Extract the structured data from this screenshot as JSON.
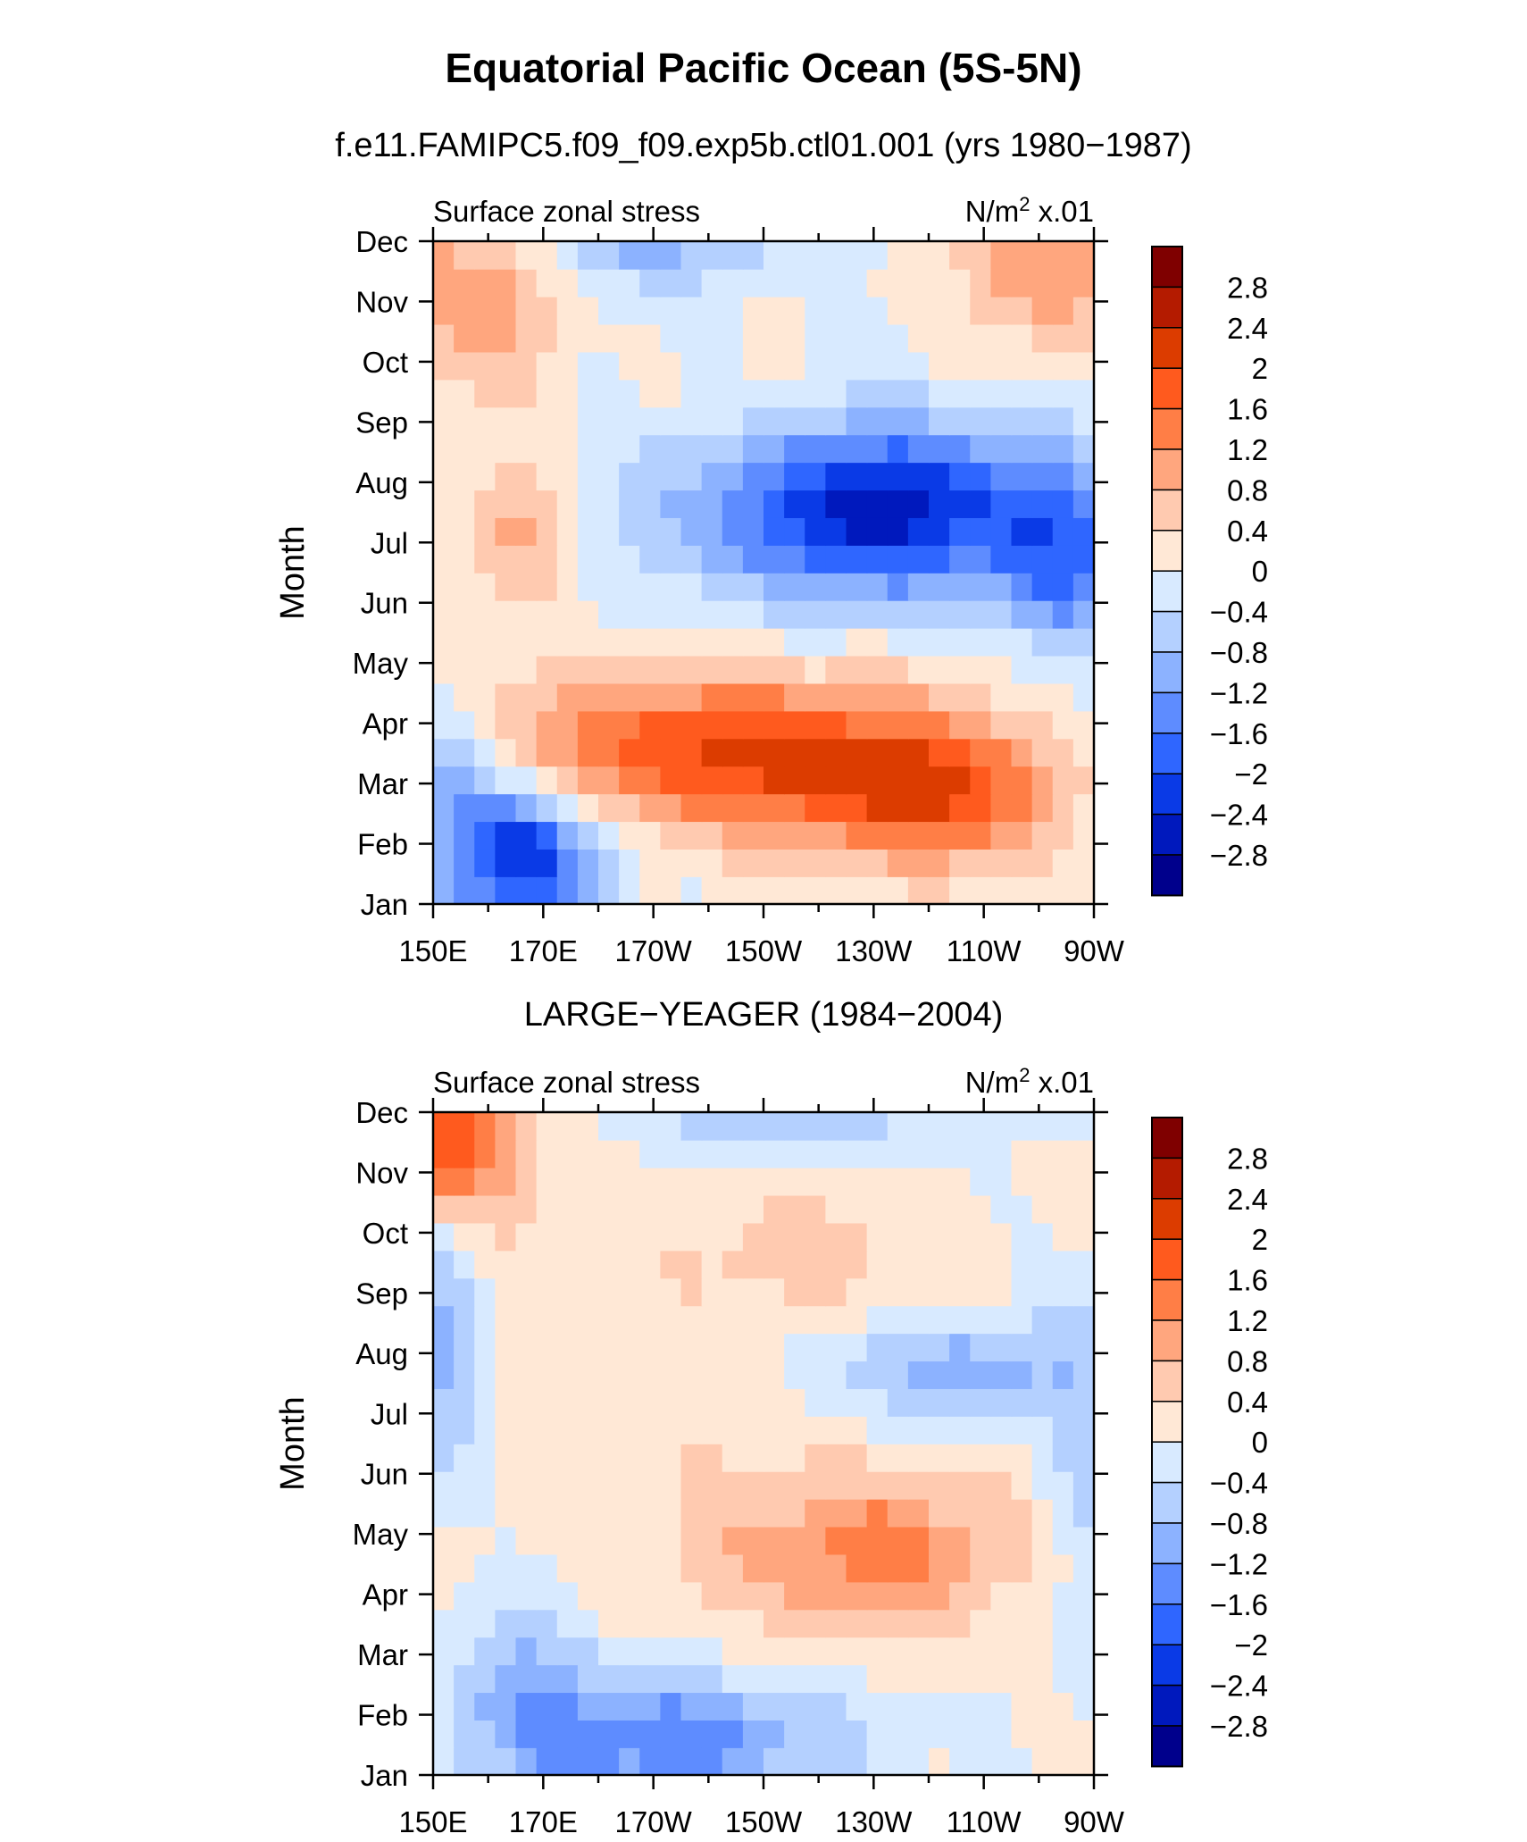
{
  "title": "Equatorial Pacific Ocean (5S-5N)",
  "chart_data": [
    {
      "type": "heatmap",
      "subtitle": "f.e11.FAMIPC5.f09_f09.exp5b.ctl01.001 (yrs 1980−1987)",
      "left_label": "Surface zonal stress",
      "right_label_base": "N/m",
      "right_label_exp": "2",
      "right_label_scale": " x.01",
      "ylabel": "Month",
      "x_ticks": [
        "150E",
        "170E",
        "170W",
        "150W",
        "130W",
        "110W",
        "90W"
      ],
      "y_ticks": [
        "Jan",
        "Feb",
        "Mar",
        "Apr",
        "May",
        "Jun",
        "Jul",
        "Aug",
        "Sep",
        "Oct",
        "Nov",
        "Dec"
      ],
      "levels": [
        "2.8",
        "2.4",
        "2",
        "1.6",
        "1.2",
        "0.8",
        "0.4",
        "0",
        "−0.4",
        "−0.8",
        "−1.2",
        "−1.6",
        "−2",
        "−2.4",
        "−2.8"
      ],
      "colors": [
        "#7f0000",
        "#b41b00",
        "#dc3c00",
        "#ff5a1e",
        "#ff7e46",
        "#ffa67e",
        "#ffcab0",
        "#ffe8d6",
        "#d8eaff",
        "#b4d0ff",
        "#8cb2ff",
        "#5e8cff",
        "#2f66ff",
        "#0a3ae6",
        "#0019bd",
        "#00008c"
      ],
      "blobs": [
        {
          "x": -1.0,
          "y": 11.0,
          "sx": 2.0,
          "sy": 3.0,
          "a": 0.8
        },
        {
          "x": 3.0,
          "y": 10.2,
          "sx": 2.8,
          "sy": 1.6,
          "a": 1.0
        },
        {
          "x": 3.5,
          "y": 6.2,
          "sx": 2.8,
          "sy": 1.3,
          "a": 0.9
        },
        {
          "x": 9.0,
          "y": 2.5,
          "sx": 9.0,
          "sy": 1.4,
          "a": 1.4
        },
        {
          "x": 18.5,
          "y": 2.1,
          "sx": 8.0,
          "sy": 1.4,
          "a": 1.5
        },
        {
          "x": 24.0,
          "y": 1.6,
          "sx": 5.0,
          "sy": 1.3,
          "a": 1.2
        },
        {
          "x": 20.0,
          "y": 6.6,
          "sx": 9.0,
          "sy": 1.5,
          "a": -2.6
        },
        {
          "x": 29.0,
          "y": 5.6,
          "sx": 3.0,
          "sy": 1.6,
          "a": -1.2
        },
        {
          "x": 3.5,
          "y": 0.6,
          "sx": 4.0,
          "sy": 1.3,
          "a": -2.4
        },
        {
          "x": 0.0,
          "y": 2.3,
          "sx": 2.5,
          "sy": 1.3,
          "a": -1.0
        },
        {
          "x": 10.0,
          "y": 11.4,
          "sx": 6.0,
          "sy": 1.0,
          "a": -1.0
        },
        {
          "x": 28.0,
          "y": 10.8,
          "sx": 4.0,
          "sy": 1.4,
          "a": 1.1
        },
        {
          "x": 14.0,
          "y": 7.5,
          "sx": 3.0,
          "sy": 2.0,
          "a": 0.3
        }
      ]
    },
    {
      "type": "heatmap",
      "subtitle": "LARGE−YEAGER (1984−2004)",
      "left_label": "Surface zonal stress",
      "right_label_base": "N/m",
      "right_label_exp": "2",
      "right_label_scale": " x.01",
      "ylabel": "Month",
      "x_ticks": [
        "150E",
        "170E",
        "170W",
        "150W",
        "130W",
        "110W",
        "90W"
      ],
      "y_ticks": [
        "Jan",
        "Feb",
        "Mar",
        "Apr",
        "May",
        "Jun",
        "Jul",
        "Aug",
        "Sep",
        "Oct",
        "Nov",
        "Dec"
      ],
      "levels": [
        "2.8",
        "2.4",
        "2",
        "1.6",
        "1.2",
        "0.8",
        "0.4",
        "0",
        "−0.4",
        "−0.8",
        "−1.2",
        "−1.6",
        "−2",
        "−2.4",
        "−2.8"
      ],
      "colors": [
        "#7f0000",
        "#b41b00",
        "#dc3c00",
        "#ff5a1e",
        "#ff7e46",
        "#ffa67e",
        "#ffcab0",
        "#ffe8d6",
        "#d8eaff",
        "#b4d0ff",
        "#8cb2ff",
        "#5e8cff",
        "#2f66ff",
        "#0a3ae6",
        "#0019bd",
        "#00008c"
      ],
      "blobs": [
        {
          "x": 0.0,
          "y": 11.0,
          "sx": 4.0,
          "sy": 1.6,
          "a": 1.9
        },
        {
          "x": 12.0,
          "y": 5.0,
          "sx": 18.0,
          "sy": 5.0,
          "a": 0.3
        },
        {
          "x": 19.0,
          "y": 3.6,
          "sx": 7.0,
          "sy": 1.2,
          "a": 0.9
        },
        {
          "x": 22.0,
          "y": 3.6,
          "sx": 3.5,
          "sy": 1.0,
          "a": 0.5
        },
        {
          "x": 17.0,
          "y": 8.8,
          "sx": 6.0,
          "sy": 1.0,
          "a": 0.5
        },
        {
          "x": 10.0,
          "y": 0.4,
          "sx": 9.0,
          "sy": 1.2,
          "a": -1.6
        },
        {
          "x": 4.0,
          "y": 1.8,
          "sx": 3.0,
          "sy": 1.5,
          "a": -0.8
        },
        {
          "x": 24.0,
          "y": 6.8,
          "sx": 7.0,
          "sy": 1.0,
          "a": -1.1
        },
        {
          "x": 16.0,
          "y": 11.6,
          "sx": 8.0,
          "sy": 0.9,
          "a": -1.1
        },
        {
          "x": 0.0,
          "y": 7.0,
          "sx": 2.0,
          "sy": 2.5,
          "a": -1.0
        },
        {
          "x": 30.0,
          "y": 5.0,
          "sx": 2.0,
          "sy": 3.0,
          "a": -0.5
        }
      ]
    }
  ]
}
